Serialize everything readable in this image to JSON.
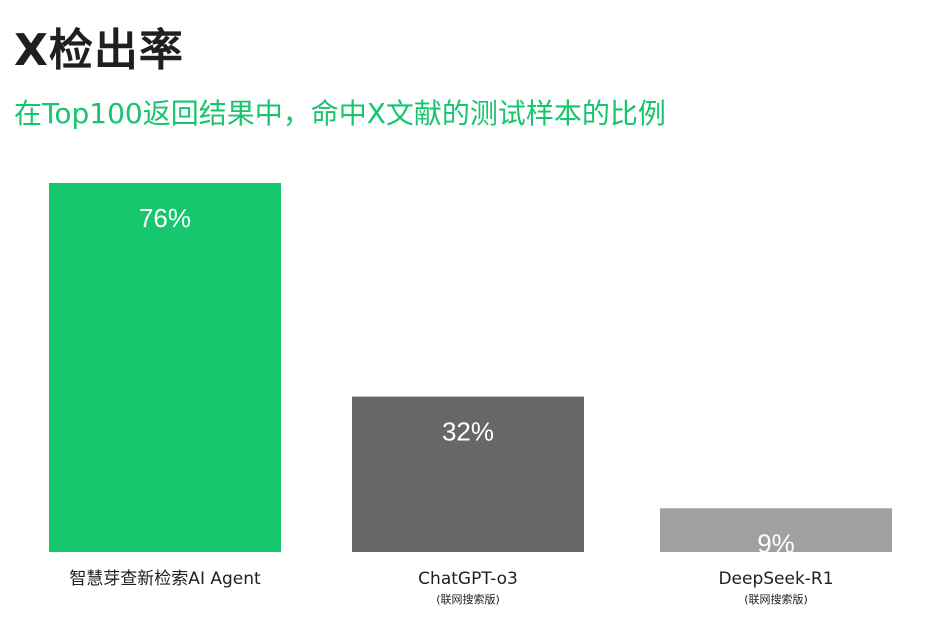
{
  "chart_data": {
    "type": "bar",
    "title": "X检出率",
    "subtitle": "在Top100返回结果中，命中X文献的测试样本的比例",
    "categories": [
      "智慧芽查新检索AI Agent",
      "ChatGPT-o3",
      "DeepSeek-R1"
    ],
    "category_notes": [
      "",
      "(联网搜索版)",
      "(联网搜索版)"
    ],
    "values": [
      76,
      32,
      9
    ],
    "data_labels": [
      "76%",
      "32%",
      "9%"
    ],
    "colors": [
      "#17c76e",
      "#676767",
      "#a0a0a0"
    ],
    "ylim": [
      0,
      76
    ],
    "xlabel": "",
    "ylabel": "",
    "grid": false,
    "legend": "none"
  }
}
